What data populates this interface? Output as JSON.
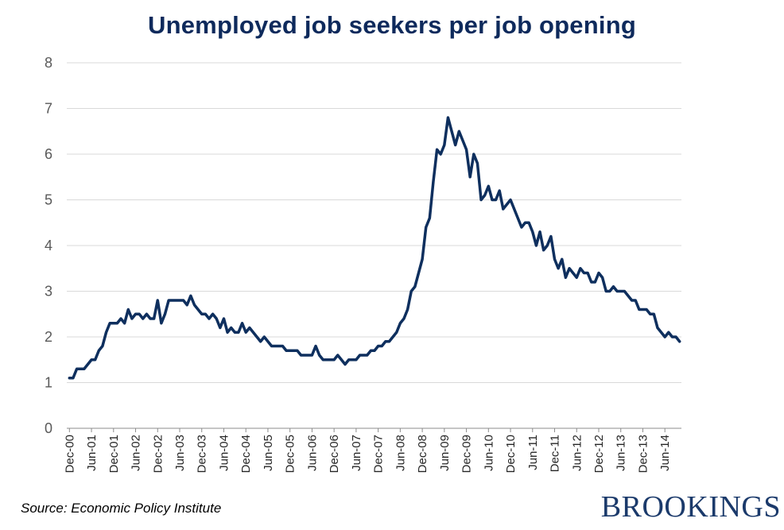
{
  "chart_data": {
    "type": "line",
    "title": "Unemployed job seekers per job opening",
    "xlabel": "",
    "ylabel": "",
    "ylim": [
      0,
      8
    ],
    "yticks": [
      "0",
      "1",
      "2",
      "3",
      "4",
      "5",
      "6",
      "7",
      "8"
    ],
    "xtick_labels": [
      "Dec-00",
      "Jun-01",
      "Dec-01",
      "Jun-02",
      "Dec-02",
      "Jun-03",
      "Dec-03",
      "Jun-04",
      "Dec-04",
      "Jun-05",
      "Dec-05",
      "Jun-06",
      "Dec-06",
      "Jun-07",
      "Dec-07",
      "Jun-08",
      "Dec-08",
      "Jun-09",
      "Dec-09",
      "Jun-10",
      "Dec-10",
      "Jun-11",
      "Dec-11",
      "Jun-12",
      "Dec-12",
      "Jun-13",
      "Dec-13",
      "Jun-14"
    ],
    "grid": true,
    "line_color": "#0e2f5e",
    "series": [
      {
        "name": "",
        "start_month": "Dec-00",
        "values": [
          1.1,
          1.1,
          1.3,
          1.3,
          1.3,
          1.4,
          1.5,
          1.5,
          1.7,
          1.8,
          2.1,
          2.3,
          2.3,
          2.3,
          2.4,
          2.3,
          2.6,
          2.4,
          2.5,
          2.5,
          2.4,
          2.5,
          2.4,
          2.4,
          2.8,
          2.3,
          2.5,
          2.8,
          2.8,
          2.8,
          2.8,
          2.8,
          2.7,
          2.9,
          2.7,
          2.6,
          2.5,
          2.5,
          2.4,
          2.5,
          2.4,
          2.2,
          2.4,
          2.1,
          2.2,
          2.1,
          2.1,
          2.3,
          2.1,
          2.2,
          2.1,
          2.0,
          1.9,
          2.0,
          1.9,
          1.8,
          1.8,
          1.8,
          1.8,
          1.7,
          1.7,
          1.7,
          1.7,
          1.6,
          1.6,
          1.6,
          1.6,
          1.8,
          1.6,
          1.5,
          1.5,
          1.5,
          1.5,
          1.6,
          1.5,
          1.4,
          1.5,
          1.5,
          1.5,
          1.6,
          1.6,
          1.6,
          1.7,
          1.7,
          1.8,
          1.8,
          1.9,
          1.9,
          2.0,
          2.1,
          2.3,
          2.4,
          2.6,
          3.0,
          3.1,
          3.4,
          3.7,
          4.4,
          4.6,
          5.4,
          6.1,
          6.0,
          6.2,
          6.8,
          6.5,
          6.2,
          6.5,
          6.3,
          6.1,
          5.5,
          6.0,
          5.8,
          5.0,
          5.1,
          5.3,
          5.0,
          5.0,
          5.2,
          4.8,
          4.9,
          5.0,
          4.8,
          4.6,
          4.4,
          4.5,
          4.5,
          4.3,
          4.0,
          4.3,
          3.9,
          4.0,
          4.2,
          3.7,
          3.5,
          3.7,
          3.3,
          3.5,
          3.4,
          3.3,
          3.5,
          3.4,
          3.4,
          3.2,
          3.2,
          3.4,
          3.3,
          3.0,
          3.0,
          3.1,
          3.0,
          3.0,
          3.0,
          2.9,
          2.8,
          2.8,
          2.6,
          2.6,
          2.6,
          2.5,
          2.5,
          2.2,
          2.1,
          2.0,
          2.1,
          2.0,
          2.0,
          1.9
        ]
      }
    ]
  },
  "source_text": "Source: Economic Policy Institute",
  "logo_text": "BROOKINGS"
}
